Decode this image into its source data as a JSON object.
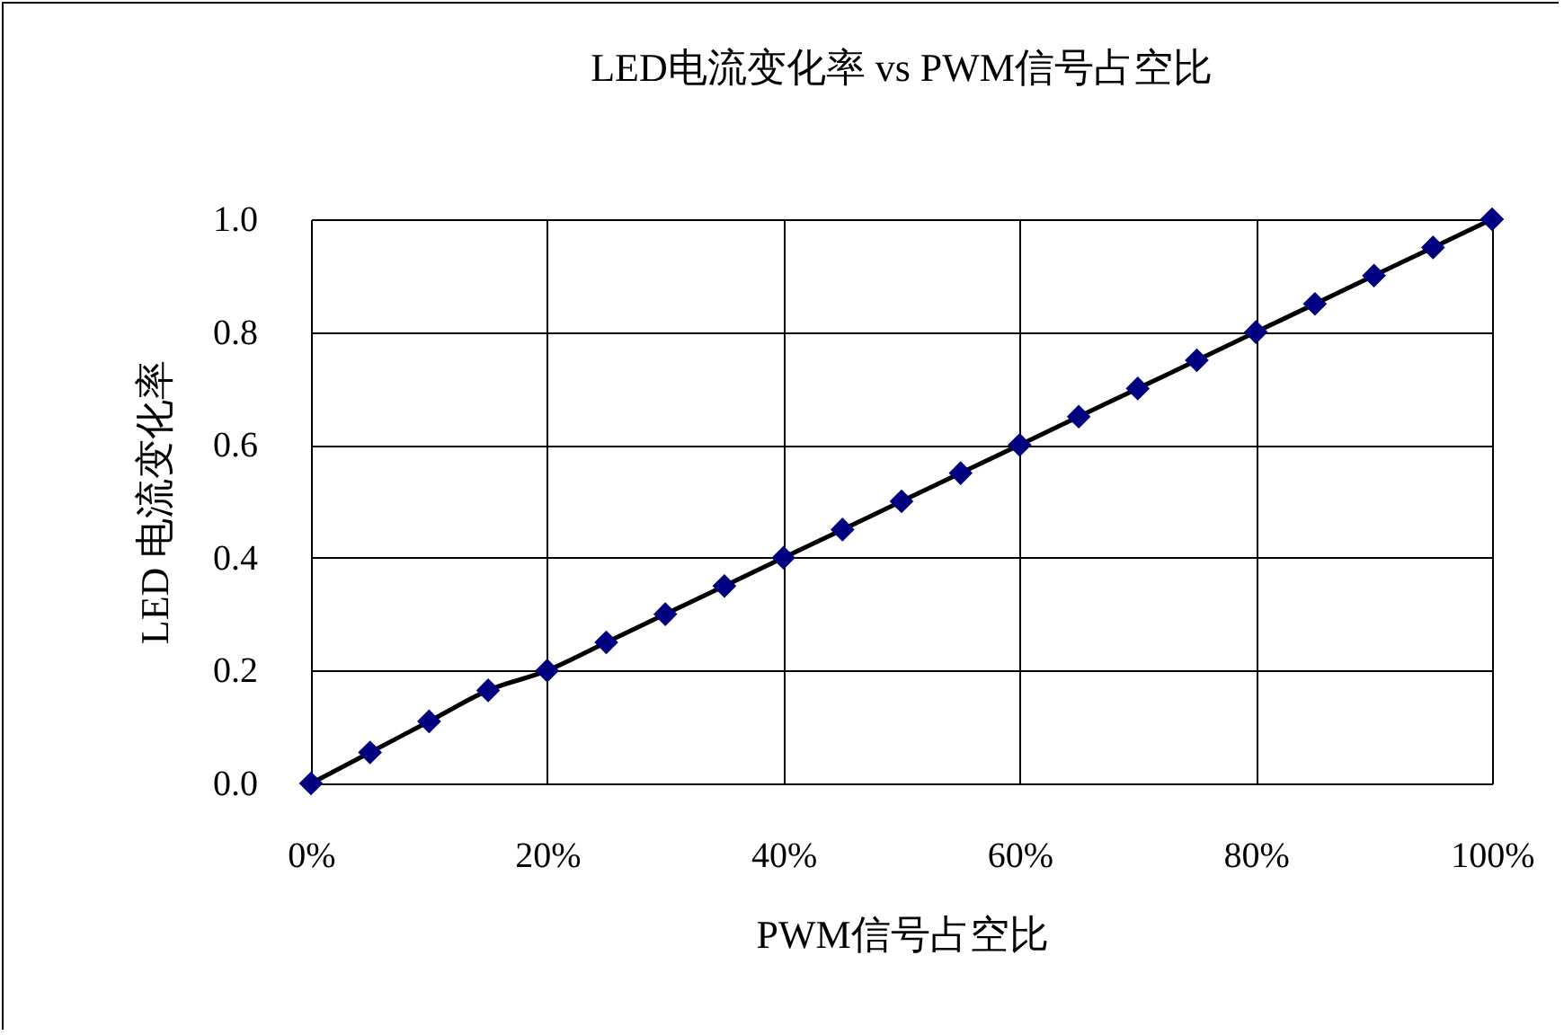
{
  "chart_data": {
    "type": "line",
    "title": "LED电流变化率 vs PWM信号占空比",
    "xlabel": "PWM信号占空比",
    "ylabel": "LED 电流变化率",
    "x": [
      0,
      5,
      10,
      15,
      20,
      25,
      30,
      35,
      40,
      45,
      50,
      55,
      60,
      65,
      70,
      75,
      80,
      85,
      90,
      95,
      100
    ],
    "series": [
      {
        "color": "#000080",
        "values": [
          0,
          0.055,
          0.11,
          0.165,
          0.2,
          0.25,
          0.3,
          0.35,
          0.4,
          0.45,
          0.5,
          0.55,
          0.6,
          0.65,
          0.7,
          0.75,
          0.8,
          0.85,
          0.9,
          0.95,
          1.0
        ]
      }
    ],
    "xlim": [
      0,
      100
    ],
    "xticks": [
      {
        "value": 0,
        "label": "0%"
      },
      {
        "value": 20,
        "label": "20%"
      },
      {
        "value": 40,
        "label": "40%"
      },
      {
        "value": 60,
        "label": "60%"
      },
      {
        "value": 80,
        "label": "80%"
      },
      {
        "value": 100,
        "label": "100%"
      }
    ],
    "ylim": [
      0,
      1
    ],
    "yticks": [
      {
        "value": 0,
        "label": "0.0"
      },
      {
        "value": 0.2,
        "label": "0.2"
      },
      {
        "value": 0.4,
        "label": "0.4"
      },
      {
        "value": 0.6,
        "label": "0.6"
      },
      {
        "value": 0.8,
        "label": "0.8"
      },
      {
        "value": 1,
        "label": "1.0"
      }
    ],
    "grid": true,
    "marker": "diamond",
    "line_style": "solid"
  }
}
